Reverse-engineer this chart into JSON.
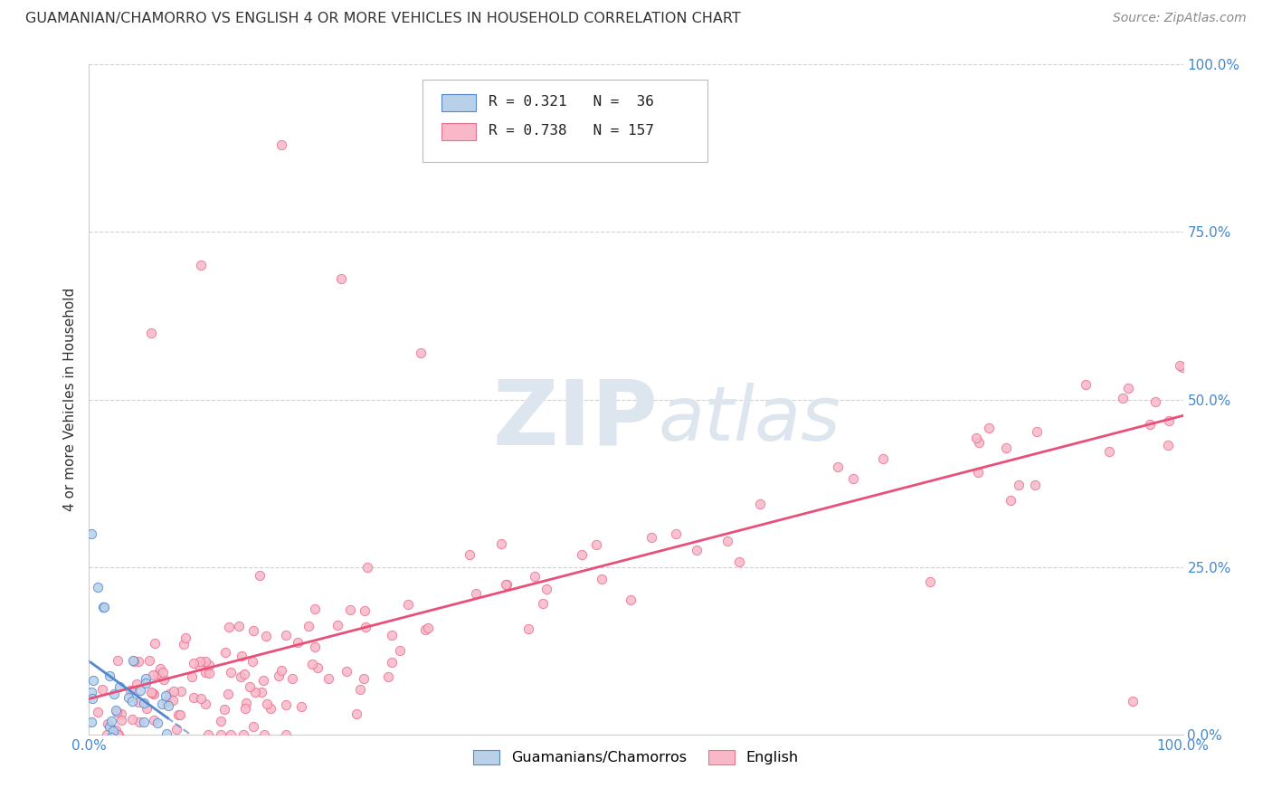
{
  "title": "GUAMANIAN/CHAMORRO VS ENGLISH 4 OR MORE VEHICLES IN HOUSEHOLD CORRELATION CHART",
  "source": "Source: ZipAtlas.com",
  "ylabel": "4 or more Vehicles in Household",
  "x_tick_labels": [
    "0.0%",
    "",
    "",
    "",
    "100.0%"
  ],
  "y_tick_labels_right": [
    "0.0%",
    "25.0%",
    "50.0%",
    "75.0%",
    "100.0%"
  ],
  "legend_label1": "Guamanians/Chamorros",
  "legend_label2": "English",
  "r1": "0.321",
  "n1": "36",
  "r2": "0.738",
  "n2": "157",
  "color1_face": "#b8d0e8",
  "color1_edge": "#5588cc",
  "color2_face": "#f8b8c8",
  "color2_edge": "#e87090",
  "line_color1": "#5588cc",
  "line_color2": "#e8507a",
  "watermark_color": "#dde5ef",
  "background_color": "#ffffff",
  "grid_color": "#cccccc",
  "title_color": "#333333",
  "ylabel_color": "#333333",
  "right_tick_color": "#4488cc",
  "bottom_tick_color": "#4488cc",
  "source_color": "#888888"
}
